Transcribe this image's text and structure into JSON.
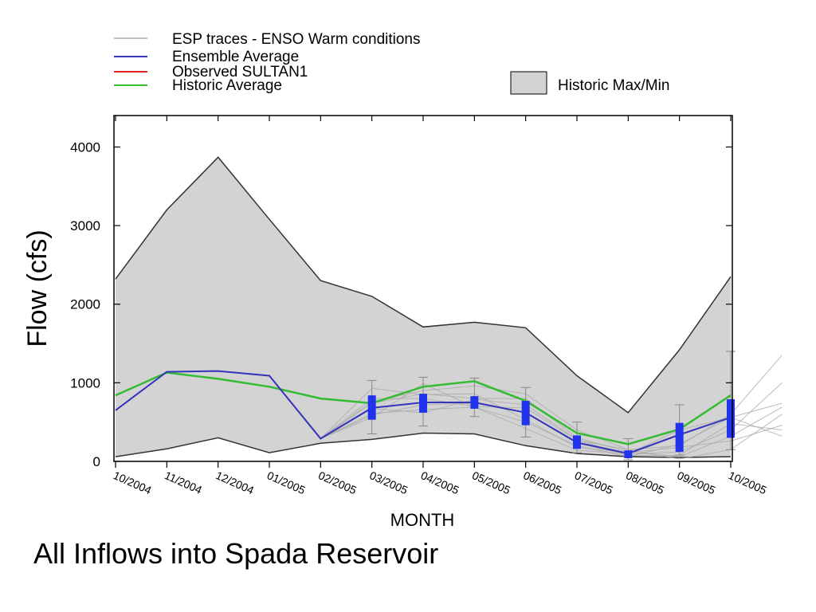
{
  "caption": "All Inflows into Spada Reservoir",
  "chart_data": {
    "type": "line",
    "xlabel": "MONTH",
    "ylabel": "Flow (cfs)",
    "ylim": [
      0,
      4400
    ],
    "yticks": [
      0,
      1000,
      2000,
      3000,
      4000
    ],
    "categories": [
      "10/2004",
      "11/2004",
      "12/2004",
      "01/2005",
      "02/2005",
      "03/2005",
      "04/2005",
      "05/2005",
      "06/2005",
      "07/2005",
      "08/2005",
      "09/2005",
      "10/2005"
    ],
    "legend": {
      "esp": "ESP traces - ENSO Warm conditions",
      "ensemble": "Ensemble Average",
      "observed": "Observed SULTAN1",
      "historic": "Historic Average",
      "maxmin": "Historic Max/Min"
    },
    "colors": {
      "esp": "#aaaaaa",
      "ensemble": "#3333bb",
      "observed": "#dd2222",
      "historic": "#33bb33",
      "band": "#d3d3d3",
      "box": "#2233ee"
    },
    "series": [
      {
        "name": "Ensemble Average",
        "values": [
          650,
          1140,
          1150,
          1090,
          290,
          680,
          750,
          750,
          620,
          240,
          100,
          340,
          560
        ]
      },
      {
        "name": "Historic Average",
        "values": [
          840,
          1130,
          1050,
          950,
          800,
          740,
          950,
          1020,
          770,
          360,
          220,
          410,
          840
        ]
      }
    ],
    "historic_max": [
      2320,
      3200,
      3870,
      3080,
      2300,
      2100,
      1710,
      1770,
      1700,
      1090,
      620,
      1420,
      2350
    ],
    "historic_min": [
      60,
      160,
      300,
      110,
      230,
      280,
      360,
      350,
      200,
      100,
      60,
      50,
      60
    ],
    "esp_whiskers": [
      {
        "month": "03/2005",
        "low": 350,
        "high": 1030
      },
      {
        "month": "04/2005",
        "low": 450,
        "high": 1070
      },
      {
        "month": "05/2005",
        "low": 570,
        "high": 1060
      },
      {
        "month": "06/2005",
        "low": 310,
        "high": 940
      },
      {
        "month": "07/2005",
        "low": 110,
        "high": 500
      },
      {
        "month": "08/2005",
        "low": 20,
        "high": 290
      },
      {
        "month": "09/2005",
        "low": 80,
        "high": 720
      },
      {
        "month": "10/2005",
        "low": 150,
        "high": 1400
      }
    ],
    "esp_boxes": [
      {
        "month": "03/2005",
        "q1": 530,
        "q3": 840
      },
      {
        "month": "04/2005",
        "q1": 620,
        "q3": 860
      },
      {
        "month": "05/2005",
        "q1": 670,
        "q3": 830
      },
      {
        "month": "06/2005",
        "q1": 460,
        "q3": 770
      },
      {
        "month": "07/2005",
        "q1": 160,
        "q3": 330
      },
      {
        "month": "08/2005",
        "q1": 40,
        "q3": 140
      },
      {
        "month": "09/2005",
        "q1": 120,
        "q3": 490
      },
      {
        "month": "10/2005",
        "q1": 300,
        "q3": 790
      }
    ],
    "esp_traces": [
      [
        760,
        900,
        960,
        860,
        400,
        150,
        30,
        150,
        600
      ],
      [
        740,
        860,
        800,
        800,
        300,
        120,
        60,
        320,
        690
      ],
      [
        590,
        720,
        740,
        620,
        230,
        90,
        120,
        400,
        1000
      ],
      [
        610,
        660,
        690,
        500,
        200,
        60,
        220,
        560,
        740
      ],
      [
        800,
        800,
        700,
        680,
        270,
        150,
        200,
        600,
        1350
      ],
      [
        930,
        850,
        860,
        530,
        180,
        110,
        180,
        260,
        460
      ],
      [
        560,
        990,
        690,
        420,
        140,
        100,
        400,
        560,
        320
      ],
      [
        670,
        620,
        790,
        720,
        280,
        70,
        80,
        480,
        400
      ]
    ]
  }
}
